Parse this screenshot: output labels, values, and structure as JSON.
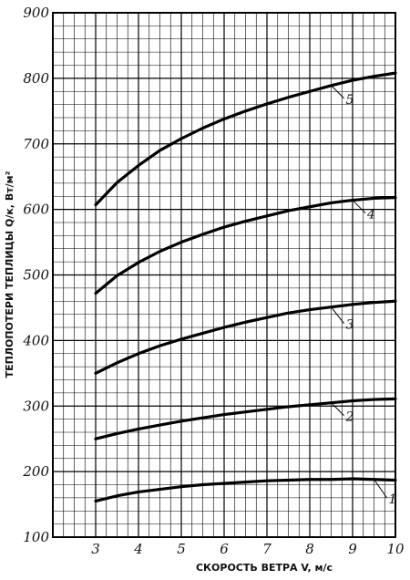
{
  "chart_data": {
    "type": "line",
    "xlabel": "СКОРОСТЬ ВЕТРА  V, м/с",
    "ylabel": "ТЕПЛОПОТЕРИ ТЕПЛИЦЫ  Q/к, Вт/м²",
    "xlim": [
      2,
      10
    ],
    "ylim": [
      100,
      900
    ],
    "x_ticks": [
      "3",
      "4",
      "5",
      "6",
      "7",
      "8",
      "9",
      "10"
    ],
    "y_ticks": [
      "100",
      "200",
      "300",
      "400",
      "500",
      "600",
      "700",
      "800",
      "900"
    ],
    "grid": true,
    "x": [
      3,
      3.5,
      4,
      4.5,
      5,
      5.5,
      6,
      6.5,
      7,
      7.5,
      8,
      8.5,
      9,
      9.5,
      10
    ],
    "series": [
      {
        "name": "1",
        "values": [
          155,
          163,
          169,
          173,
          177,
          180,
          182,
          184,
          186,
          187,
          188,
          188,
          189,
          188,
          187
        ]
      },
      {
        "name": "2",
        "values": [
          250,
          258,
          265,
          271,
          277,
          282,
          287,
          291,
          295,
          299,
          302,
          305,
          308,
          310,
          311
        ]
      },
      {
        "name": "3",
        "values": [
          350,
          366,
          380,
          392,
          402,
          411,
          420,
          428,
          435,
          442,
          447,
          451,
          455,
          458,
          460
        ]
      },
      {
        "name": "4",
        "values": [
          472,
          499,
          519,
          536,
          550,
          562,
          573,
          582,
          590,
          598,
          604,
          610,
          614,
          617,
          618
        ]
      },
      {
        "name": "5",
        "values": [
          607,
          641,
          667,
          690,
          708,
          724,
          738,
          750,
          761,
          771,
          780,
          789,
          797,
          803,
          808
        ]
      }
    ]
  }
}
